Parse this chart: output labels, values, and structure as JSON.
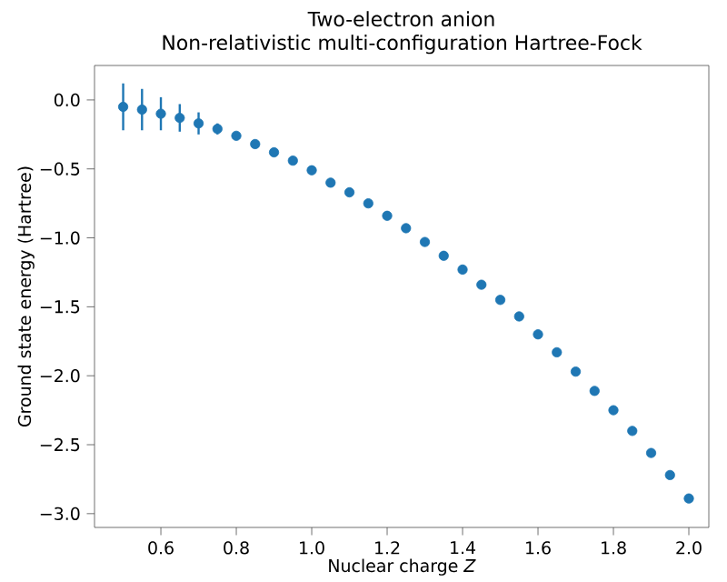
{
  "chart_data": {
    "type": "scatter",
    "title": "Two-electron anion",
    "subtitle": "Non-relativistic multi-configuration Hartree-Fock",
    "xlabel": "Nuclear charge *Z*",
    "ylabel": "Ground state energy (Hartree)",
    "x": [
      0.5,
      0.55,
      0.6,
      0.65,
      0.7,
      0.75,
      0.8,
      0.85,
      0.9,
      0.95,
      1.0,
      1.05,
      1.1,
      1.15,
      1.2,
      1.25,
      1.3,
      1.35,
      1.4,
      1.45,
      1.5,
      1.55,
      1.6,
      1.65,
      1.7,
      1.75,
      1.8,
      1.85,
      1.9,
      1.95,
      2.0
    ],
    "values": [
      -0.05,
      -0.07,
      -0.1,
      -0.13,
      -0.17,
      -0.21,
      -0.26,
      -0.32,
      -0.38,
      -0.44,
      -0.51,
      -0.6,
      -0.67,
      -0.75,
      -0.84,
      -0.93,
      -1.03,
      -1.13,
      -1.23,
      -1.34,
      -1.45,
      -1.57,
      -1.7,
      -1.83,
      -1.97,
      -2.11,
      -2.25,
      -2.4,
      -2.56,
      -2.72,
      -2.89
    ],
    "errors": [
      0.17,
      0.15,
      0.12,
      0.1,
      0.08,
      0.04,
      null,
      null,
      null,
      null,
      null,
      null,
      null,
      null,
      null,
      null,
      null,
      null,
      null,
      null,
      null,
      null,
      null,
      null,
      null,
      null,
      null,
      null,
      null,
      null,
      null
    ],
    "color": "#1f77b4",
    "marker": "circle",
    "xlim": [
      0.424,
      2.053
    ],
    "ylim": [
      -3.1,
      0.25
    ],
    "xticks": [
      {
        "value": 0.6,
        "label": "0.6"
      },
      {
        "value": 0.8,
        "label": "0.8"
      },
      {
        "value": 1.0,
        "label": "1.0"
      },
      {
        "value": 1.2,
        "label": "1.2"
      },
      {
        "value": 1.4,
        "label": "1.4"
      },
      {
        "value": 1.6,
        "label": "1.6"
      },
      {
        "value": 1.8,
        "label": "1.8"
      },
      {
        "value": 2.0,
        "label": "2.0"
      }
    ],
    "yticks": [
      {
        "value": -3.0,
        "label": "−3.0"
      },
      {
        "value": -2.5,
        "label": "−2.5"
      },
      {
        "value": -2.0,
        "label": "−2.0"
      },
      {
        "value": -1.5,
        "label": "−1.5"
      },
      {
        "value": -1.0,
        "label": "−1.0"
      },
      {
        "value": -0.5,
        "label": "−0.5"
      },
      {
        "value": 0.0,
        "label": "0.0"
      }
    ]
  }
}
